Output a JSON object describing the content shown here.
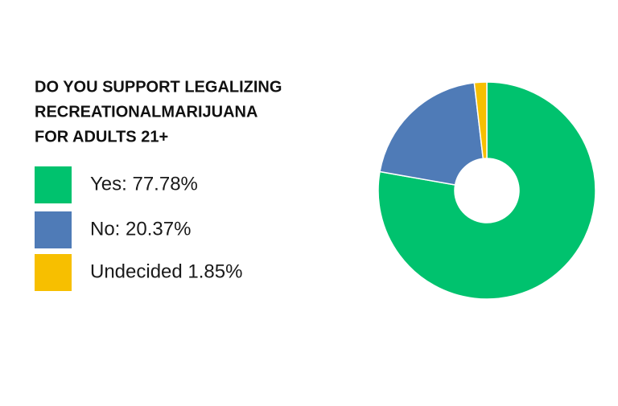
{
  "chart_data": {
    "type": "donut",
    "title": [
      "DO YOU SUPPORT LEGALIZING",
      "RECREATIONALMARIJUANA",
      "FOR ADULTS 21+"
    ],
    "categories": [
      "Yes: 77.78%",
      "No: 20.37%",
      "Undecided 1.85%"
    ],
    "values": [
      77.78,
      20.37,
      1.85
    ],
    "colors": [
      "#00c26e",
      "#4f7bb7",
      "#f7bf00"
    ]
  }
}
